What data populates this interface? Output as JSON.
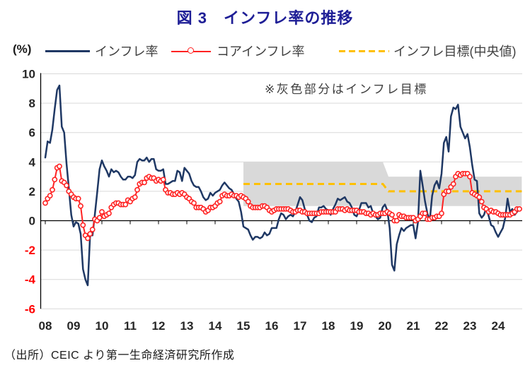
{
  "header": {
    "title": "図 3　インフレ率の推移"
  },
  "legend": {
    "unit": "(%)",
    "items": [
      {
        "label": "インフレ率",
        "color": "#1f3864",
        "style": "solid-line"
      },
      {
        "label": "コアインフレ率",
        "color": "#ff2222",
        "style": "line-with-circle-markers"
      },
      {
        "label": "インフレ目標(中央値)",
        "color": "#ffc000",
        "style": "dashed-line"
      }
    ]
  },
  "annotation": {
    "note": "※灰色部分はインフレ目標"
  },
  "footer": {
    "source": "（出所）CEIC より第一生命経済研究所作成"
  },
  "colors": {
    "headline": "#1f3864",
    "core": "#ff2222",
    "target": "#ffc000",
    "band": "#d9d9d9",
    "grid": "#d9d9d9",
    "axis": "#000000",
    "tick_label": "#262626",
    "negative_tick_label": "#ff0000",
    "title": "#1e1e96"
  },
  "chart_data": {
    "type": "line",
    "title": "図 3　インフレ率の推移",
    "ylabel": "(%)",
    "xlabel": "",
    "ylim": [
      -6,
      10
    ],
    "y_ticks": [
      -6,
      -4,
      -2,
      0,
      2,
      4,
      6,
      8,
      10
    ],
    "grid": true,
    "legend_position": "top",
    "note": "※灰色部分はインフレ目標",
    "source": "（出所）CEIC より第一生命経済研究所作成",
    "x_unit": "monthly",
    "x_start": "2008-01",
    "x_end": "2024-10",
    "x_tick_labels": [
      "08",
      "09",
      "10",
      "11",
      "12",
      "13",
      "14",
      "15",
      "16",
      "17",
      "18",
      "19",
      "20",
      "21",
      "22",
      "23",
      "24"
    ],
    "series": [
      {
        "name": "インフレ率",
        "color": "#1f3864",
        "style": "solid",
        "values": [
          4.3,
          5.4,
          5.3,
          6.2,
          7.6,
          8.9,
          9.2,
          6.4,
          6.0,
          3.9,
          2.2,
          0.4,
          -0.4,
          -0.1,
          -0.2,
          -0.9,
          -3.3,
          -4.0,
          -4.4,
          -1.0,
          -1.0,
          0.4,
          1.9,
          3.5,
          4.1,
          3.7,
          3.4,
          3.0,
          3.5,
          3.3,
          3.4,
          3.3,
          3.0,
          2.8,
          2.8,
          3.0,
          3.0,
          2.9,
          3.1,
          4.0,
          4.2,
          4.1,
          4.1,
          4.3,
          4.0,
          4.2,
          4.2,
          3.5,
          3.4,
          3.4,
          3.5,
          2.5,
          2.5,
          2.6,
          2.7,
          2.7,
          3.4,
          3.3,
          2.7,
          3.6,
          3.4,
          3.2,
          2.7,
          2.4,
          2.3,
          2.3,
          2.0,
          1.6,
          1.4,
          1.5,
          1.9,
          1.7,
          1.9,
          2.0,
          2.1,
          2.4,
          2.6,
          2.4,
          2.2,
          2.1,
          1.8,
          1.5,
          1.3,
          0.6,
          -0.4,
          -0.5,
          -0.6,
          -1.0,
          -1.3,
          -1.1,
          -1.1,
          -1.2,
          -1.1,
          -0.8,
          -1.0,
          -0.9,
          -0.5,
          -0.5,
          -0.5,
          0.1,
          0.5,
          0.4,
          0.1,
          0.3,
          0.4,
          0.3,
          0.6,
          1.1,
          1.6,
          1.4,
          0.8,
          0.4,
          0.0,
          -0.1,
          0.2,
          0.3,
          0.9,
          0.9,
          1.0,
          0.8,
          0.7,
          0.4,
          0.8,
          1.1,
          1.5,
          1.4,
          1.5,
          1.6,
          1.3,
          1.2,
          0.9,
          0.4,
          0.3,
          0.7,
          1.2,
          1.2,
          1.2,
          0.9,
          1.0,
          0.5,
          0.3,
          0.1,
          0.2,
          0.9,
          1.1,
          0.7,
          -0.5,
          -3.0,
          -3.4,
          -1.6,
          -1.0,
          -0.5,
          -0.7,
          -0.5,
          -0.4,
          -0.3,
          -0.3,
          -1.2,
          -0.1,
          3.4,
          2.4,
          1.3,
          0.5,
          0.0,
          1.7,
          2.4,
          2.7,
          2.2,
          3.2,
          5.3,
          5.7,
          4.7,
          7.1,
          7.7,
          7.6,
          7.9,
          6.4,
          6.0,
          5.6,
          5.9,
          5.0,
          3.8,
          2.8,
          2.7,
          0.5,
          0.2,
          0.4,
          0.9,
          0.3,
          -0.3,
          -0.4,
          -0.8,
          -1.1,
          -0.8,
          -0.5,
          0.2,
          1.5,
          0.6,
          0.8,
          0.4,
          0.6,
          0.8
        ]
      },
      {
        "name": "コアインフレ率",
        "color": "#ff2222",
        "style": "solid-with-circle-markers",
        "values": [
          1.2,
          1.5,
          1.7,
          2.1,
          2.8,
          3.6,
          3.7,
          2.7,
          2.6,
          2.4,
          2.0,
          1.8,
          1.6,
          1.5,
          1.5,
          1.0,
          -0.3,
          -1.0,
          -1.2,
          -0.9,
          -0.6,
          0.1,
          0.0,
          0.2,
          0.6,
          0.3,
          0.4,
          0.5,
          0.9,
          1.1,
          1.2,
          1.2,
          1.1,
          1.1,
          1.1,
          1.4,
          1.3,
          1.5,
          1.6,
          2.1,
          2.5,
          2.6,
          2.6,
          2.9,
          3.0,
          2.9,
          2.9,
          2.7,
          2.8,
          2.7,
          2.8,
          2.1,
          1.9,
          1.9,
          1.8,
          1.8,
          1.9,
          1.8,
          1.9,
          1.8,
          1.6,
          1.5,
          1.3,
          1.2,
          0.9,
          0.9,
          0.9,
          0.8,
          0.6,
          0.7,
          0.9,
          0.9,
          1.0,
          1.2,
          1.3,
          1.7,
          1.8,
          1.7,
          1.7,
          1.8,
          1.7,
          1.7,
          1.6,
          1.7,
          1.6,
          1.5,
          1.3,
          1.0,
          0.9,
          0.9,
          0.9,
          0.9,
          1.0,
          1.0,
          0.9,
          0.7,
          0.6,
          0.7,
          0.8,
          0.8,
          0.8,
          0.8,
          0.8,
          0.8,
          0.7,
          0.6,
          0.6,
          0.7,
          0.7,
          0.6,
          0.6,
          0.5,
          0.5,
          0.5,
          0.5,
          0.5,
          0.5,
          0.6,
          0.6,
          0.6,
          0.6,
          0.6,
          0.6,
          0.6,
          0.8,
          0.8,
          0.8,
          0.7,
          0.8,
          0.7,
          0.7,
          0.7,
          0.7,
          0.6,
          0.6,
          0.6,
          0.5,
          0.5,
          0.4,
          0.5,
          0.4,
          0.4,
          0.5,
          0.5,
          0.5,
          0.6,
          0.5,
          0.4,
          0.0,
          0.0,
          0.4,
          0.3,
          0.3,
          0.2,
          0.2,
          0.2,
          0.2,
          0.0,
          0.1,
          0.3,
          0.5,
          0.5,
          0.1,
          0.1,
          0.2,
          0.2,
          0.3,
          0.3,
          0.5,
          1.8,
          2.0,
          2.0,
          2.3,
          2.5,
          3.0,
          3.2,
          3.1,
          3.2,
          3.2,
          3.2,
          3.0,
          1.9,
          1.8,
          1.7,
          1.6,
          1.3,
          0.9,
          0.8,
          0.6,
          0.7,
          0.6,
          0.6,
          0.5,
          0.4,
          0.4,
          0.4,
          0.4,
          0.4,
          0.5,
          0.6,
          0.8,
          0.8
        ]
      },
      {
        "name": "インフレ目標(中央値)",
        "color": "#ffc000",
        "style": "dashed",
        "segments": [
          {
            "from": "2015-01",
            "to": "2019-12",
            "value": 2.5
          },
          {
            "from": "2020-01",
            "to": "2024-10",
            "value": 2.0
          }
        ]
      }
    ],
    "bands": [
      {
        "name": "インフレ目標レンジ 2015-2019",
        "from": "2015-01",
        "to": "2019-12",
        "low": 1.0,
        "high": 4.0,
        "color": "#d9d9d9"
      },
      {
        "name": "インフレ目標レンジ 2020-",
        "from": "2020-01",
        "to": "2024-10",
        "low": 1.0,
        "high": 3.0,
        "color": "#d9d9d9"
      }
    ]
  }
}
